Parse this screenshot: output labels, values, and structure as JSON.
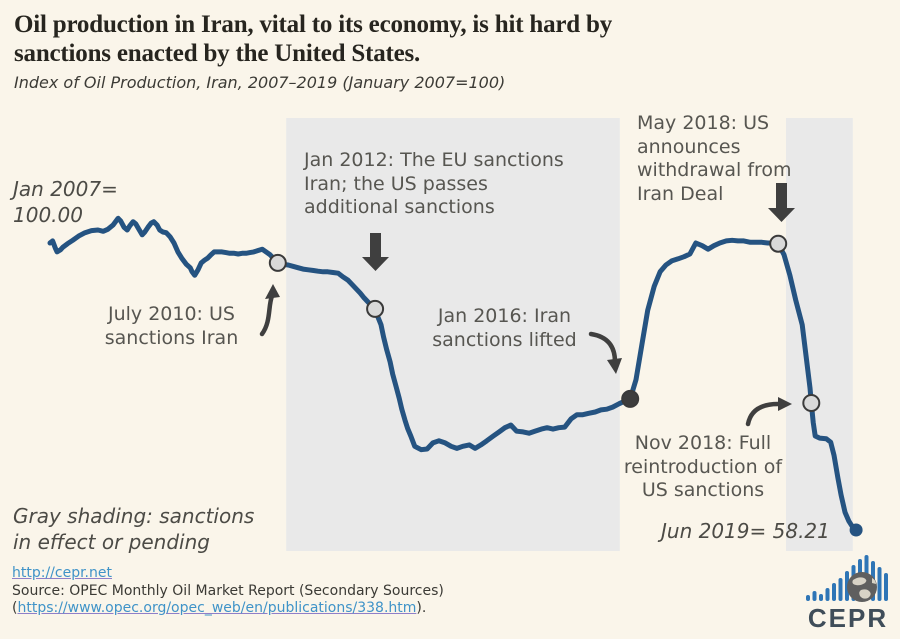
{
  "header": {
    "title_line1": "Oil production in Iran, vital to its economy, is hit hard by",
    "title_line2": "sanctions enacted by the United States.",
    "subtitle": "Index of Oil Production, Iran, 2007–2019 (January 2007=100)"
  },
  "annotations": {
    "jan2007": {
      "lines": [
        "Jan 2007=",
        "100.00"
      ]
    },
    "jul2010": {
      "lines": [
        "July 2010: US",
        "sanctions Iran"
      ]
    },
    "jan2012": {
      "lines": [
        "Jan 2012: The EU sanctions",
        "Iran; the US passes",
        "additional sanctions"
      ]
    },
    "jan2016": {
      "lines": [
        "Jan 2016: Iran",
        "sanctions lifted"
      ]
    },
    "may2018": {
      "lines": [
        "May 2018: US",
        "announces",
        "withdrawal from",
        "Iran Deal"
      ]
    },
    "nov2018": {
      "lines": [
        "Nov 2018: Full",
        "reintroduction of",
        "US sanctions"
      ]
    },
    "jun2019": {
      "text": "Jun 2019= 58.21"
    },
    "gray_note": {
      "lines": [
        "Gray shading: sanctions",
        "in effect or pending"
      ]
    }
  },
  "footer": {
    "link1": "http://cepr.net",
    "source": "Source: OPEC Monthly Oil Market Report (Secondary Sources)",
    "link2_prefix": "(",
    "link2": "https://www.opec.org/opec_web/en/publications/338.htm",
    "link2_suffix": ").",
    "logo_text": "CEPR"
  },
  "colors": {
    "background": "#FAF5EA",
    "shade": "#E9E9E9",
    "line": "#255381",
    "marker_light_fill": "#D9D9D9",
    "marker_dark_fill": "#3D3D3D",
    "marker_stroke": "#3A3A3A",
    "arrow": "#3F3F3F",
    "annotation_text": "#575651",
    "link_blue": "#3F93C8",
    "logo_blue": "#2E75B6"
  },
  "chart_data": {
    "type": "line",
    "title": "Index of Oil Production, Iran, 2007–2019 (January 2007=100)",
    "x_unit": "decimal_year",
    "x_range": [
      2007.0,
      2019.42
    ],
    "y_range": [
      55,
      105
    ],
    "grid": false,
    "legend": "none",
    "start_label": "Jan 2007= 100.00",
    "end_label": "Jun 2019= 58.21",
    "shading_meaning": "sanctions in effect or pending",
    "shaded_regions": [
      {
        "from": 2010.64,
        "to": 2015.78
      },
      {
        "from": 2018.34,
        "to": 2019.37
      }
    ],
    "markers": [
      {
        "label": "July 2010: US sanctions Iran",
        "year": 2010.51,
        "value": 97.1,
        "style": "light"
      },
      {
        "label": "Jan 2012: The EU sanctions Iran; the US passes additional sanctions",
        "year": 2012.01,
        "value": 90.4,
        "style": "light"
      },
      {
        "label": "Jan 2016: Iran sanctions lifted",
        "year": 2015.94,
        "value": 77.3,
        "style": "dark"
      },
      {
        "label": "May 2018: US announces withdrawal from Iran Deal",
        "year": 2018.22,
        "value": 99.9,
        "style": "light"
      },
      {
        "label": "Nov 2018: Full reintroduction of US sanctions",
        "year": 2018.73,
        "value": 76.7,
        "style": "light"
      },
      {
        "label": "Jun 2019 = 58.21",
        "year": 2019.42,
        "value": 58.21,
        "style": "end"
      }
    ],
    "series": [
      {
        "name": "Iran oil production index (Jan 2007=100)",
        "points": [
          [
            2007.0,
            100.0
          ],
          [
            2007.04,
            100.3
          ],
          [
            2007.08,
            99.3
          ],
          [
            2007.11,
            98.7
          ],
          [
            2007.16,
            99.0
          ],
          [
            2007.2,
            99.4
          ],
          [
            2007.27,
            99.9
          ],
          [
            2007.35,
            100.4
          ],
          [
            2007.44,
            101.0
          ],
          [
            2007.54,
            101.5
          ],
          [
            2007.64,
            101.8
          ],
          [
            2007.74,
            101.9
          ],
          [
            2007.82,
            101.7
          ],
          [
            2007.89,
            102.0
          ],
          [
            2007.97,
            102.6
          ],
          [
            2008.05,
            103.6
          ],
          [
            2008.09,
            103.2
          ],
          [
            2008.14,
            102.3
          ],
          [
            2008.19,
            101.9
          ],
          [
            2008.23,
            102.5
          ],
          [
            2008.28,
            103.1
          ],
          [
            2008.32,
            102.8
          ],
          [
            2008.37,
            102.0
          ],
          [
            2008.42,
            101.2
          ],
          [
            2008.46,
            101.6
          ],
          [
            2008.51,
            102.3
          ],
          [
            2008.56,
            102.9
          ],
          [
            2008.6,
            103.1
          ],
          [
            2008.65,
            102.6
          ],
          [
            2008.69,
            101.9
          ],
          [
            2008.74,
            101.6
          ],
          [
            2008.79,
            101.5
          ],
          [
            2008.85,
            100.9
          ],
          [
            2008.91,
            100.0
          ],
          [
            2008.97,
            98.7
          ],
          [
            2009.03,
            97.8
          ],
          [
            2009.1,
            96.9
          ],
          [
            2009.16,
            96.4
          ],
          [
            2009.19,
            95.8
          ],
          [
            2009.23,
            95.3
          ],
          [
            2009.28,
            96.1
          ],
          [
            2009.33,
            97.1
          ],
          [
            2009.38,
            97.5
          ],
          [
            2009.43,
            97.8
          ],
          [
            2009.48,
            98.3
          ],
          [
            2009.53,
            98.7
          ],
          [
            2009.59,
            98.7
          ],
          [
            2009.65,
            98.7
          ],
          [
            2009.71,
            98.6
          ],
          [
            2009.77,
            98.5
          ],
          [
            2009.84,
            98.5
          ],
          [
            2009.9,
            98.4
          ],
          [
            2009.96,
            98.5
          ],
          [
            2010.02,
            98.5
          ],
          [
            2010.08,
            98.6
          ],
          [
            2010.14,
            98.7
          ],
          [
            2010.2,
            98.9
          ],
          [
            2010.27,
            99.1
          ],
          [
            2010.33,
            98.7
          ],
          [
            2010.39,
            98.3
          ],
          [
            2010.45,
            97.7
          ],
          [
            2010.51,
            97.1
          ],
          [
            2010.59,
            96.9
          ],
          [
            2010.67,
            96.8
          ],
          [
            2010.75,
            96.6
          ],
          [
            2010.82,
            96.4
          ],
          [
            2010.9,
            96.2
          ],
          [
            2010.98,
            96.1
          ],
          [
            2011.06,
            96.0
          ],
          [
            2011.13,
            95.9
          ],
          [
            2011.21,
            95.8
          ],
          [
            2011.28,
            95.8
          ],
          [
            2011.36,
            95.7
          ],
          [
            2011.44,
            95.6
          ],
          [
            2011.51,
            95.1
          ],
          [
            2011.59,
            94.6
          ],
          [
            2011.65,
            94.0
          ],
          [
            2011.71,
            93.4
          ],
          [
            2011.78,
            92.7
          ],
          [
            2011.84,
            92.0
          ],
          [
            2011.92,
            91.2
          ],
          [
            2012.01,
            90.4
          ],
          [
            2012.05,
            89.3
          ],
          [
            2012.1,
            88.1
          ],
          [
            2012.14,
            86.3
          ],
          [
            2012.19,
            84.4
          ],
          [
            2012.24,
            82.7
          ],
          [
            2012.28,
            80.9
          ],
          [
            2012.33,
            79.2
          ],
          [
            2012.38,
            77.4
          ],
          [
            2012.42,
            75.8
          ],
          [
            2012.47,
            74.2
          ],
          [
            2012.51,
            73.0
          ],
          [
            2012.56,
            71.9
          ],
          [
            2012.62,
            70.4
          ],
          [
            2012.72,
            69.9
          ],
          [
            2012.81,
            70.0
          ],
          [
            2012.9,
            70.9
          ],
          [
            2012.99,
            71.2
          ],
          [
            2013.09,
            70.9
          ],
          [
            2013.18,
            70.4
          ],
          [
            2013.27,
            70.1
          ],
          [
            2013.36,
            70.4
          ],
          [
            2013.46,
            70.6
          ],
          [
            2013.55,
            70.1
          ],
          [
            2013.64,
            70.6
          ],
          [
            2013.73,
            71.2
          ],
          [
            2013.83,
            71.9
          ],
          [
            2013.92,
            72.5
          ],
          [
            2014.01,
            73.1
          ],
          [
            2014.1,
            73.5
          ],
          [
            2014.19,
            72.6
          ],
          [
            2014.29,
            72.5
          ],
          [
            2014.38,
            72.3
          ],
          [
            2014.47,
            72.6
          ],
          [
            2014.57,
            72.9
          ],
          [
            2014.66,
            73.1
          ],
          [
            2014.75,
            72.9
          ],
          [
            2014.84,
            73.1
          ],
          [
            2014.93,
            73.2
          ],
          [
            2015.03,
            74.4
          ],
          [
            2015.12,
            75.0
          ],
          [
            2015.21,
            75.0
          ],
          [
            2015.3,
            75.2
          ],
          [
            2015.4,
            75.4
          ],
          [
            2015.49,
            75.7
          ],
          [
            2015.58,
            75.8
          ],
          [
            2015.67,
            76.1
          ],
          [
            2015.77,
            76.6
          ],
          [
            2015.86,
            77.0
          ],
          [
            2015.94,
            77.3
          ],
          [
            2016.03,
            80.1
          ],
          [
            2016.12,
            85.2
          ],
          [
            2016.21,
            90.2
          ],
          [
            2016.31,
            93.7
          ],
          [
            2016.4,
            95.8
          ],
          [
            2016.49,
            96.8
          ],
          [
            2016.58,
            97.4
          ],
          [
            2016.68,
            97.7
          ],
          [
            2016.77,
            98.0
          ],
          [
            2016.86,
            98.4
          ],
          [
            2016.95,
            100.0
          ],
          [
            2017.05,
            99.6
          ],
          [
            2017.14,
            99.1
          ],
          [
            2017.23,
            99.6
          ],
          [
            2017.32,
            100.0
          ],
          [
            2017.42,
            100.3
          ],
          [
            2017.51,
            100.4
          ],
          [
            2017.6,
            100.3
          ],
          [
            2017.69,
            100.3
          ],
          [
            2017.79,
            100.1
          ],
          [
            2017.88,
            100.1
          ],
          [
            2017.97,
            100.1
          ],
          [
            2018.06,
            100.0
          ],
          [
            2018.16,
            100.0
          ],
          [
            2018.22,
            99.9
          ],
          [
            2018.31,
            98.3
          ],
          [
            2018.4,
            95.3
          ],
          [
            2018.49,
            91.7
          ],
          [
            2018.59,
            88.1
          ],
          [
            2018.65,
            83.5
          ],
          [
            2018.71,
            78.9
          ],
          [
            2018.73,
            76.7
          ],
          [
            2018.76,
            73.9
          ],
          [
            2018.79,
            71.9
          ],
          [
            2018.86,
            71.6
          ],
          [
            2018.96,
            71.5
          ],
          [
            2019.03,
            71.0
          ],
          [
            2019.08,
            69.1
          ],
          [
            2019.14,
            65.8
          ],
          [
            2019.19,
            63.3
          ],
          [
            2019.25,
            60.8
          ],
          [
            2019.31,
            59.5
          ],
          [
            2019.37,
            58.6
          ],
          [
            2019.42,
            58.21
          ]
        ]
      }
    ]
  }
}
